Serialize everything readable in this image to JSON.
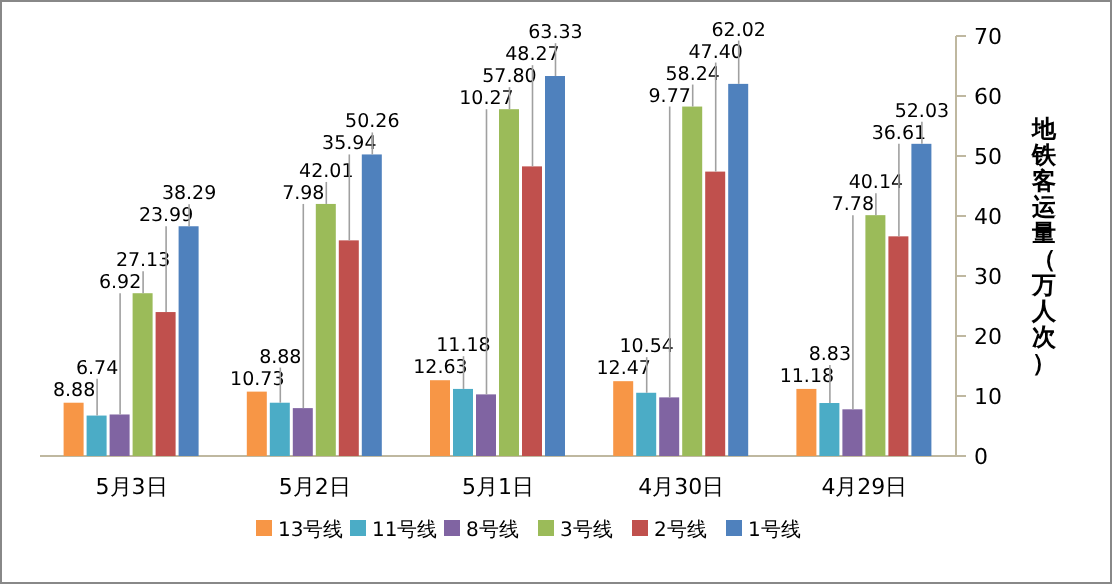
{
  "chart_data": {
    "type": "bar",
    "ylabel": "地铁客运量（万人次）",
    "categories": [
      "5月3日",
      "5月2日",
      "5月1日",
      "4月30日",
      "4月29日"
    ],
    "series": [
      {
        "name": "13号线",
        "color": "#f79646",
        "values": [
          8.88,
          10.73,
          12.63,
          12.47,
          11.18
        ],
        "value_labels": [
          "8.88",
          "10.73",
          "12.63",
          "12.47",
          "11.18"
        ]
      },
      {
        "name": "11号线",
        "color": "#4bacc6",
        "values": [
          6.74,
          8.88,
          11.18,
          10.54,
          8.83
        ],
        "value_labels": [
          "6.74",
          "8.88",
          "11.18",
          "10.54",
          "8.83"
        ]
      },
      {
        "name": "8号线",
        "color": "#8064a2",
        "values": [
          6.92,
          7.98,
          10.27,
          9.77,
          7.78
        ],
        "value_labels": [
          "6.92",
          "7.98",
          "10.27",
          "9.77",
          "7.78"
        ]
      },
      {
        "name": "3号线",
        "color": "#9bbb59",
        "values": [
          27.13,
          42.01,
          57.8,
          58.24,
          40.14
        ],
        "value_labels": [
          "27.13",
          "42.01",
          "57.80",
          "58.24",
          "40.14"
        ]
      },
      {
        "name": "2号线",
        "color": "#c0504d",
        "values": [
          23.99,
          35.94,
          48.27,
          47.4,
          36.61
        ],
        "value_labels": [
          "23.99",
          "35.94",
          "48.27",
          "47.40",
          "36.61"
        ]
      },
      {
        "name": "1号线",
        "color": "#4f81bd",
        "values": [
          38.29,
          50.26,
          63.33,
          62.02,
          52.03
        ],
        "value_labels": [
          "38.29",
          "50.26",
          "63.33",
          "62.02",
          "52.03"
        ]
      }
    ],
    "ylim": [
      0,
      70
    ],
    "yticks": [
      0,
      10,
      20,
      30,
      40,
      50,
      60,
      70
    ],
    "legend": "bottom",
    "grid": false
  }
}
